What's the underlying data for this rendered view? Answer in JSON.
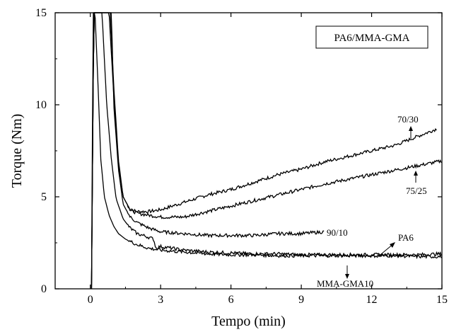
{
  "chart_data": {
    "type": "line",
    "title": "",
    "xlabel": "Tempo (min)",
    "ylabel": "Torque (Nm)",
    "xlim": [
      -1.5,
      15
    ],
    "ylim": [
      0,
      15
    ],
    "xticks": [
      0,
      3,
      6,
      9,
      12,
      15
    ],
    "yticks": [
      0,
      5,
      10,
      15
    ],
    "grid": false,
    "legend": {
      "text": "PA6/MMA-GMA",
      "placement": "top-right"
    },
    "colors": {
      "series": "#000000",
      "axis": "#000000"
    },
    "series": [
      {
        "name": "70/30",
        "x": [
          0.05,
          0.15,
          0.3,
          0.5,
          0.7,
          0.85,
          1.0,
          1.2,
          1.4,
          1.7,
          2.0,
          2.5,
          3,
          4,
          5,
          6,
          7,
          8,
          9,
          10,
          11,
          12,
          13,
          14,
          14.8
        ],
        "y": [
          0,
          15,
          15,
          15,
          15,
          15,
          11.0,
          7.0,
          5.0,
          4.3,
          4.2,
          4.2,
          4.3,
          4.7,
          5.1,
          5.4,
          5.8,
          6.2,
          6.5,
          6.9,
          7.2,
          7.5,
          7.8,
          8.3,
          8.7
        ]
      },
      {
        "name": "75/25",
        "x": [
          0.05,
          0.15,
          0.3,
          0.5,
          0.7,
          0.8,
          1.0,
          1.2,
          1.4,
          1.7,
          2.0,
          2.5,
          3,
          4,
          5,
          6,
          7,
          8,
          9,
          10,
          11,
          12,
          13,
          14,
          15
        ],
        "y": [
          0,
          15,
          15,
          15,
          15,
          15,
          10.5,
          6.8,
          5.0,
          4.3,
          4.1,
          4.0,
          3.9,
          3.9,
          4.2,
          4.5,
          4.8,
          5.1,
          5.4,
          5.7,
          5.95,
          6.2,
          6.45,
          6.7,
          6.95
        ]
      },
      {
        "name": "90/10",
        "x": [
          0.05,
          0.15,
          0.3,
          0.5,
          0.7,
          0.9,
          1.0,
          1.2,
          1.4,
          1.7,
          2.0,
          2.5,
          3,
          4,
          5,
          6,
          7,
          8,
          9,
          10
        ],
        "y": [
          0,
          15,
          15,
          15,
          15,
          15,
          10.0,
          6.5,
          4.6,
          3.9,
          3.6,
          3.3,
          3.1,
          3.0,
          2.9,
          2.9,
          2.9,
          3.0,
          3.0,
          3.1
        ]
      },
      {
        "name": "PA6",
        "x": [
          0.05,
          0.15,
          0.25,
          0.35,
          0.5,
          0.7,
          0.9,
          1.1,
          1.4,
          1.7,
          2.0,
          2.5,
          2.7,
          2.8,
          3,
          4,
          5,
          6,
          7,
          8,
          9,
          10,
          11,
          12,
          13,
          14,
          15
        ],
        "y": [
          0,
          15,
          15,
          15,
          15,
          10.0,
          7.0,
          4.9,
          3.8,
          3.3,
          3.0,
          2.8,
          2.7,
          2.2,
          2.3,
          2.1,
          2.0,
          1.95,
          1.9,
          1.9,
          1.85,
          1.85,
          1.85,
          1.85,
          1.85,
          1.85,
          1.9
        ]
      },
      {
        "name": "MMA-GMA10",
        "x": [
          0.05,
          0.12,
          0.2,
          0.3,
          0.45,
          0.6,
          0.8,
          1.0,
          1.2,
          1.5,
          2.0,
          2.5,
          3,
          4,
          5,
          6,
          7,
          8,
          9,
          10,
          11,
          12,
          13,
          14,
          15
        ],
        "y": [
          0,
          15,
          15,
          12.0,
          7.0,
          5.0,
          4.0,
          3.4,
          3.0,
          2.7,
          2.4,
          2.2,
          2.1,
          2.0,
          1.9,
          1.85,
          1.85,
          1.8,
          1.8,
          1.8,
          1.8,
          1.8,
          1.8,
          1.75,
          1.75
        ]
      }
    ],
    "annotations": [
      {
        "text": "70/30",
        "series": "70/30"
      },
      {
        "text": "75/25",
        "series": "75/25"
      },
      {
        "text": "90/10",
        "series": "90/10"
      },
      {
        "text": "PA6",
        "series": "PA6"
      },
      {
        "text": "MMA-GMA10",
        "series": "MMA-GMA10"
      }
    ]
  }
}
